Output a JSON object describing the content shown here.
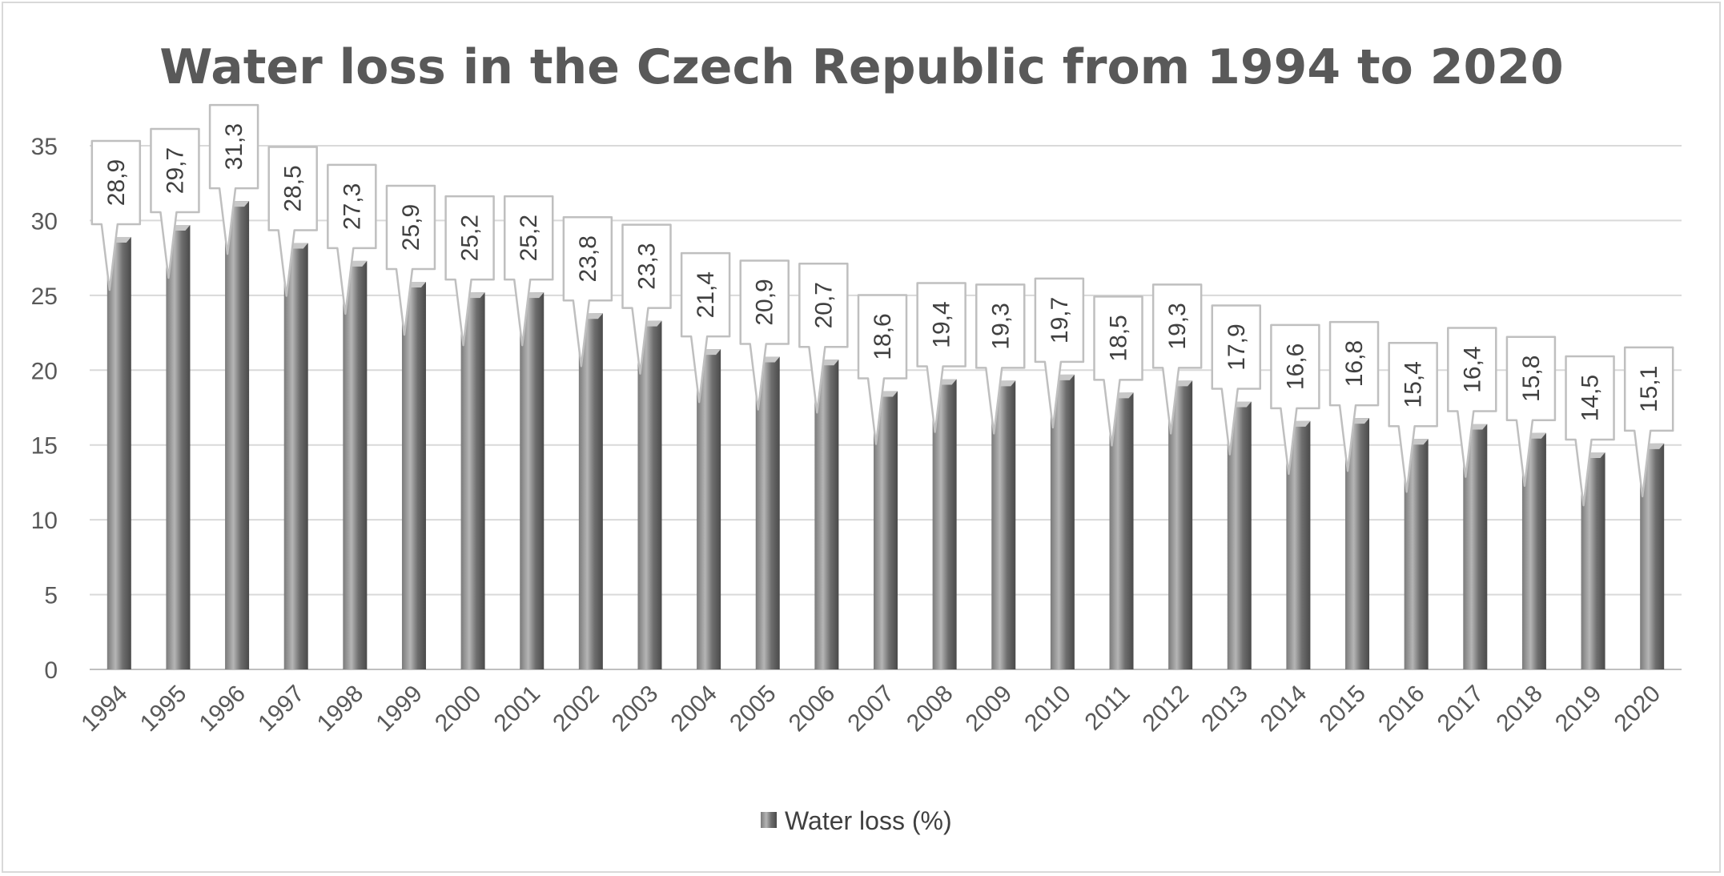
{
  "chart_data": {
    "type": "bar",
    "title": "Water loss in the Czech Republic from 1994 to 2020",
    "xlabel": "",
    "ylabel": "",
    "ylim": [
      0,
      35
    ],
    "yticks": [
      0,
      5,
      10,
      15,
      20,
      25,
      30,
      35
    ],
    "grid": true,
    "legend_position": "bottom",
    "categories": [
      "1994",
      "1995",
      "1996",
      "1997",
      "1998",
      "1999",
      "2000",
      "2001",
      "2002",
      "2003",
      "2004",
      "2005",
      "2006",
      "2007",
      "2008",
      "2009",
      "2010",
      "2011",
      "2012",
      "2013",
      "2014",
      "2015",
      "2016",
      "2017",
      "2018",
      "2019",
      "2020"
    ],
    "series": [
      {
        "name": "Water loss (%)",
        "values": [
          28.9,
          29.7,
          31.3,
          28.5,
          27.3,
          25.9,
          25.2,
          25.2,
          23.8,
          23.3,
          21.4,
          20.9,
          20.7,
          18.6,
          19.4,
          19.3,
          19.7,
          18.5,
          19.3,
          17.9,
          16.6,
          16.8,
          15.4,
          16.4,
          15.8,
          14.5,
          15.1
        ],
        "data_labels": [
          "28,9",
          "29,7",
          "31,3",
          "28,5",
          "27,3",
          "25,9",
          "25,2",
          "25,2",
          "23,8",
          "23,3",
          "21,4",
          "20,9",
          "20,7",
          "18,6",
          "19,4",
          "19,3",
          "19,7",
          "18,5",
          "19,3",
          "17,9",
          "16,6",
          "16,8",
          "15,4",
          "16,4",
          "15,8",
          "14,5",
          "15,1"
        ]
      }
    ],
    "colors": {
      "bar_dark": "#5a5a5a",
      "bar_light": "#a8a8a8",
      "grid": "#d9d9d9",
      "text": "#595959",
      "label_border": "#bfbfbf"
    }
  }
}
